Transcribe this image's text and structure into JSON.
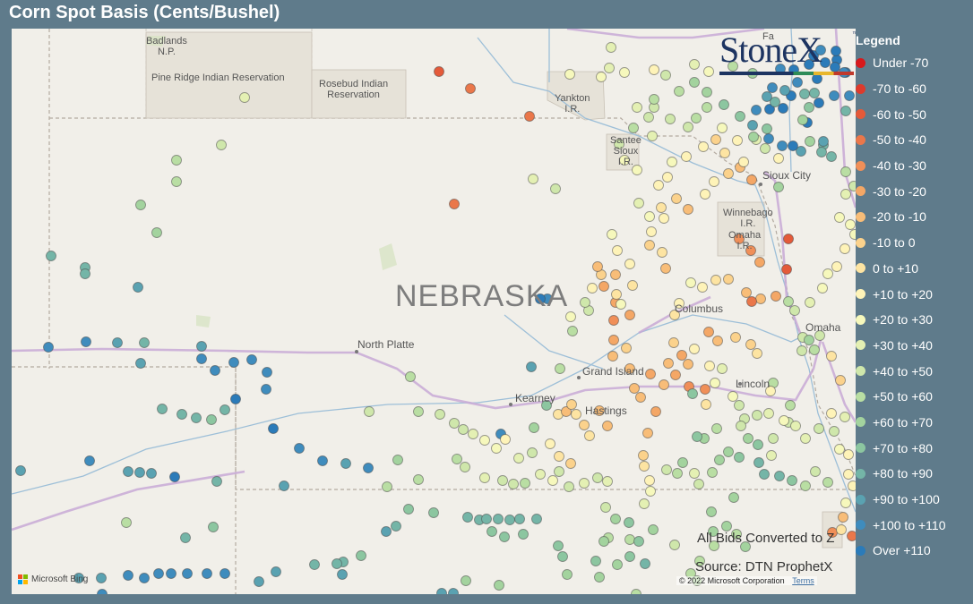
{
  "title": "Corn Spot Basis (Cents/Bushel)",
  "brand": "StoneX",
  "brand_mark": "™",
  "legend": {
    "title": "Legend",
    "items": [
      {
        "label": "Under -70",
        "color": "#d7191c"
      },
      {
        "label": "-70 to -60",
        "color": "#dd3a2c"
      },
      {
        "label": "-60 to -50",
        "color": "#e45a3a"
      },
      {
        "label": "-50 to -40",
        "color": "#ea774a"
      },
      {
        "label": "-40 to -30",
        "color": "#f08f58"
      },
      {
        "label": "-30 to -20",
        "color": "#f4a766"
      },
      {
        "label": "-20 to -10",
        "color": "#f8bd78"
      },
      {
        "label": "-10 to 0",
        "color": "#fbd28c"
      },
      {
        "label": "0 to +10",
        "color": "#fde4a2"
      },
      {
        "label": "+10 to +20",
        "color": "#fef3b8"
      },
      {
        "label": "+20 to +30",
        "color": "#f6f8bc"
      },
      {
        "label": "+30 to +40",
        "color": "#e4f0b3"
      },
      {
        "label": "+40 to +50",
        "color": "#cfe7ab"
      },
      {
        "label": "+50 to +60",
        "color": "#b9dea3"
      },
      {
        "label": "+60 to +70",
        "color": "#a3d39e"
      },
      {
        "label": "+70 to +80",
        "color": "#8cc6a0"
      },
      {
        "label": "+80 to +90",
        "color": "#74b5a7"
      },
      {
        "label": "+90 to +100",
        "color": "#5aa2b1"
      },
      {
        "label": "+100 to +110",
        "color": "#3f8cbd"
      },
      {
        "label": "Over +110",
        "color": "#2b7bb9"
      }
    ]
  },
  "map": {
    "state_label": "NEBRASKA",
    "places": {
      "badlands": "Badlands\nN.P.",
      "pine_ridge": "Pine Ridge Indian Reservation",
      "rosebud": "Rosebud Indian\nReservation",
      "yankton": "Yankton\nI.R.",
      "santee": "Santee\nSioux\nI.R.",
      "sioux_city": "Sioux City",
      "winnebago": "Winnebago\nI.R.",
      "omaha_ir": "Omaha\nI.R.",
      "columbus": "Columbus",
      "omaha": "Omaha",
      "north_platte": "North Platte",
      "grand_island": "Grand Island",
      "kearney": "Kearney",
      "hastings": "Hastings",
      "lincoln": "Lincoln",
      "fargo_fragment": "Fa"
    },
    "note_bids": "All Bids Converted to Z",
    "note_source": "Source: DTN ProphetX",
    "bing": "Microsoft Bing",
    "copyright": "© 2022 Microsoft Corporation",
    "terms": "Terms"
  }
}
